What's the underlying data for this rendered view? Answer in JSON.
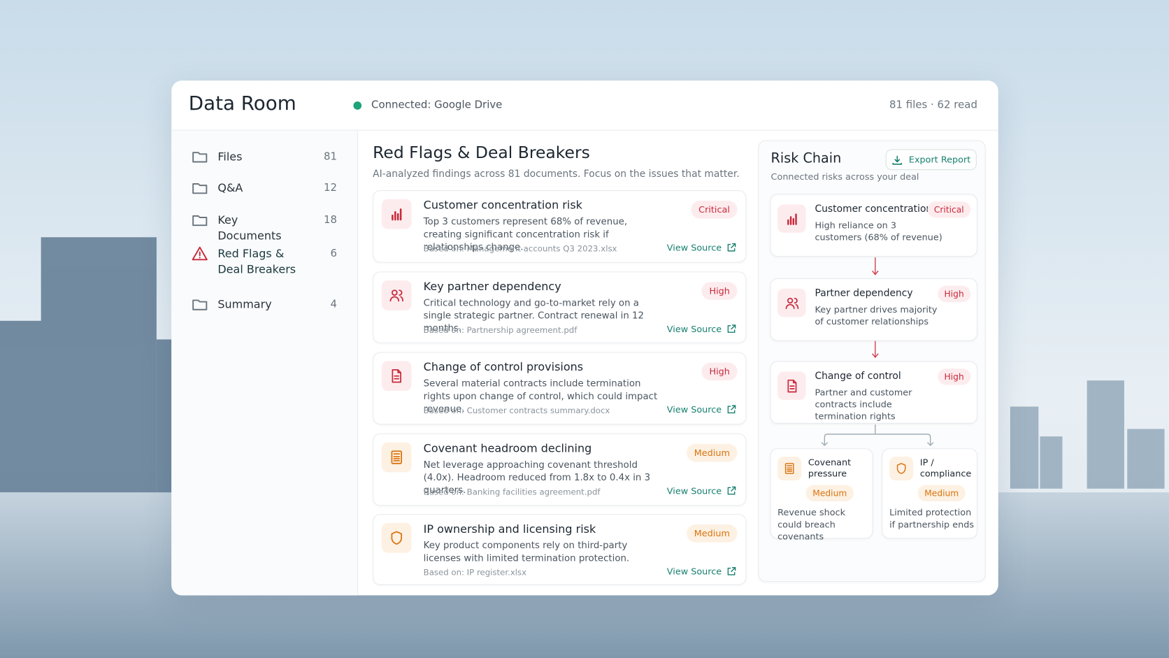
{
  "header": {
    "title": "Data Room",
    "status": "Connected: Google Drive",
    "files": "81 files",
    "read": "62 read"
  },
  "sidebar": {
    "items": [
      {
        "label": "Files",
        "count": 81
      },
      {
        "label": "Q&A",
        "count": 12
      },
      {
        "label": "Key Documents",
        "count": 18
      },
      {
        "label": "Red Flags & Deal Breakers",
        "count": 6
      },
      {
        "label": "Summary",
        "count": 4
      }
    ]
  },
  "main": {
    "title": "Red Flags & Deal Breakers",
    "subtitle": "AI-analyzed findings across 81 documents. Focus on the issues that matter.",
    "findings": [
      {
        "title": "Customer concentration risk",
        "severity": "Critical",
        "description": "Top 3 customers represent 68% of revenue, creating significant concentration risk if relationships change.",
        "source": "Based on: Management accounts Q3 2023.xlsx",
        "link": "View Source"
      },
      {
        "title": "Key partner dependency",
        "severity": "High",
        "description": "Critical technology and go-to-market rely on a single strategic partner. Contract renewal in 12 months.",
        "source": "Based on: Partnership agreement.pdf",
        "link": "View Source"
      },
      {
        "title": "Change of control provisions",
        "severity": "High",
        "description": "Several material contracts include termination rights upon change of control, which could impact revenue.",
        "source": "Based on: Customer contracts summary.docx",
        "link": "View Source"
      },
      {
        "title": "Covenant headroom declining",
        "severity": "Medium",
        "description": "Net leverage approaching covenant threshold (4.0x). Headroom reduced from 1.8x to 0.4x in 3 quarters.",
        "source": "Based on: Banking facilities agreement.pdf",
        "link": "View Source"
      },
      {
        "title": "IP ownership and licensing risk",
        "severity": "Medium",
        "description": "Key product components rely on third-party licenses with limited termination protection.",
        "source": "Based on: IP register.xlsx",
        "link": "View Source"
      }
    ]
  },
  "risk_chain": {
    "title": "Risk Chain",
    "export": "Export Report",
    "subtitle": "Connected risks across your deal",
    "nodes": [
      {
        "title": "Customer concentration",
        "severity": "Critical",
        "description": "High reliance on 3 customers (68% of revenue)"
      },
      {
        "title": "Partner dependency",
        "severity": "High",
        "description": "Key partner drives majority of customer relationships"
      },
      {
        "title": "Change of control",
        "severity": "High",
        "description": "Partner and customer contracts include termination rights"
      }
    ],
    "branches": [
      {
        "title": "Covenant pressure",
        "severity": "Medium",
        "description": "Revenue shock could breach covenants"
      },
      {
        "title": "IP / compliance",
        "severity": "Medium",
        "description": "Limited protection if partnership ends"
      }
    ]
  }
}
